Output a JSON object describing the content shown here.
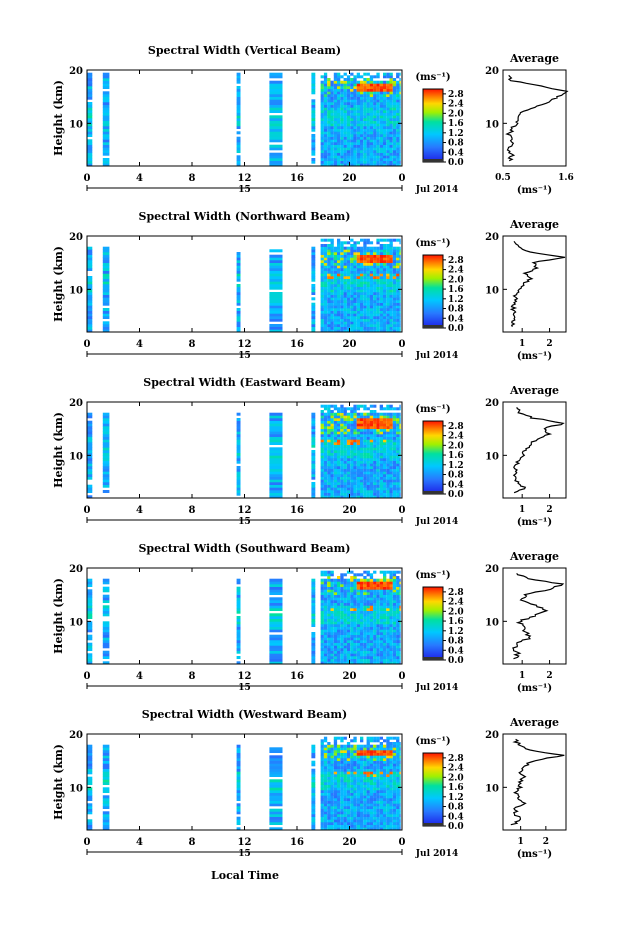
{
  "figure": {
    "xlabel": "Local Time",
    "ylabel": "Height (km)",
    "date_label": "Jul 2014",
    "day_label": "15",
    "colorbar_unit": "(ms⁻¹)",
    "colorbar_ticks": [
      "0.0",
      "0.4",
      "0.8",
      "1.2",
      "1.6",
      "2.0",
      "2.4",
      "2.8"
    ],
    "avg_title": "Average",
    "avg_xlabel": "(ms⁻¹)",
    "colors": {
      "low": "#1e1ee6",
      "mid": "#00c8ff",
      "high": "#ff2000",
      "bg": "#ffffff"
    }
  },
  "chart_data": [
    {
      "type": "heatmap",
      "title": "Spectral Width (Vertical Beam)",
      "xlabel": "Local Time",
      "ylabel": "Height (km)",
      "x_ticks": [
        "0",
        "4",
        "8",
        "12",
        "16",
        "20",
        "0"
      ],
      "y_ticks": [
        "20",
        "10"
      ],
      "xlim": [
        0,
        24
      ],
      "ylim": [
        2,
        20
      ],
      "colorbar": {
        "min": 0.0,
        "max": 3.0,
        "ticks": [
          "0.0",
          "0.4",
          "0.8",
          "1.2",
          "1.6",
          "2.0",
          "2.4",
          "2.8"
        ]
      },
      "data_periods_hours": [
        [
          0.0,
          0.4
        ],
        [
          1.2,
          1.7
        ],
        [
          11.4,
          11.7
        ],
        [
          13.9,
          14.9
        ],
        [
          17.1,
          17.4
        ],
        [
          17.8,
          23.9
        ]
      ],
      "strong_layer_km": [
        16,
        17
      ],
      "average_profile": {
        "xlim": [
          0.5,
          1.6
        ],
        "x_ticks": [
          "0.5",
          "1.6"
        ],
        "height_km": [
          3,
          4,
          5,
          6,
          7,
          8,
          9,
          10,
          11,
          12,
          13,
          14,
          15,
          16,
          17,
          18,
          19
        ],
        "values": [
          0.62,
          0.65,
          0.58,
          0.7,
          0.64,
          0.6,
          0.66,
          0.75,
          0.72,
          0.8,
          1.05,
          1.3,
          1.45,
          1.6,
          1.2,
          0.65,
          0.6
        ]
      }
    },
    {
      "type": "heatmap",
      "title": "Spectral Width (Northward Beam)",
      "xlabel": "Local Time",
      "ylabel": "Height (km)",
      "x_ticks": [
        "0",
        "4",
        "8",
        "12",
        "16",
        "20",
        "0"
      ],
      "y_ticks": [
        "20",
        "10"
      ],
      "xlim": [
        0,
        24
      ],
      "ylim": [
        2,
        20
      ],
      "colorbar": {
        "min": 0.0,
        "max": 3.0,
        "ticks": [
          "0.0",
          "0.4",
          "0.8",
          "1.2",
          "1.6",
          "2.0",
          "2.4",
          "2.8"
        ]
      },
      "data_periods_hours": [
        [
          0.0,
          0.4
        ],
        [
          1.2,
          1.7
        ],
        [
          11.4,
          11.7
        ],
        [
          13.9,
          14.9
        ],
        [
          17.1,
          17.4
        ],
        [
          17.8,
          23.9
        ]
      ],
      "strong_layer_km": [
        15,
        16
      ],
      "average_profile": {
        "xlim": [
          0.3,
          2.6
        ],
        "x_ticks": [
          "1",
          "2"
        ],
        "height_km": [
          3,
          4,
          5,
          6,
          7,
          8,
          9,
          10,
          11,
          12,
          13,
          14,
          15,
          16,
          17,
          18,
          19
        ],
        "values": [
          0.7,
          0.65,
          0.75,
          0.7,
          0.68,
          0.72,
          0.8,
          0.9,
          1.0,
          1.3,
          1.1,
          1.5,
          1.4,
          2.6,
          1.3,
          0.8,
          0.7
        ]
      }
    },
    {
      "type": "heatmap",
      "title": "Spectral Width (Eastward Beam)",
      "xlabel": "Local Time",
      "ylabel": "Height (km)",
      "x_ticks": [
        "0",
        "4",
        "8",
        "12",
        "16",
        "20",
        "0"
      ],
      "y_ticks": [
        "20",
        "10"
      ],
      "xlim": [
        0,
        24
      ],
      "ylim": [
        2,
        20
      ],
      "colorbar": {
        "min": 0.0,
        "max": 3.0,
        "ticks": [
          "0.0",
          "0.4",
          "0.8",
          "1.2",
          "1.6",
          "2.0",
          "2.4",
          "2.8"
        ]
      },
      "data_periods_hours": [
        [
          0.0,
          0.4
        ],
        [
          1.2,
          1.7
        ],
        [
          11.4,
          11.7
        ],
        [
          13.9,
          14.9
        ],
        [
          17.1,
          17.4
        ],
        [
          17.8,
          23.9
        ]
      ],
      "strong_layer_km": [
        15,
        16.5
      ],
      "average_profile": {
        "xlim": [
          0.3,
          2.6
        ],
        "x_ticks": [
          "1",
          "2"
        ],
        "height_km": [
          3,
          4,
          5,
          6,
          7,
          8,
          9,
          10,
          11,
          12,
          13,
          14,
          15,
          16,
          17,
          18,
          19
        ],
        "values": [
          0.7,
          1.1,
          0.8,
          0.7,
          0.72,
          0.8,
          0.9,
          1.0,
          1.1,
          1.3,
          1.5,
          2.0,
          1.8,
          2.5,
          1.4,
          0.9,
          0.8
        ]
      }
    },
    {
      "type": "heatmap",
      "title": "Spectral Width (Southward Beam)",
      "xlabel": "Local Time",
      "ylabel": "Height (km)",
      "x_ticks": [
        "0",
        "4",
        "8",
        "12",
        "16",
        "20",
        "0"
      ],
      "y_ticks": [
        "20",
        "10"
      ],
      "xlim": [
        0,
        24
      ],
      "ylim": [
        2,
        20
      ],
      "colorbar": {
        "min": 0.0,
        "max": 3.0,
        "ticks": [
          "0.0",
          "0.4",
          "0.8",
          "1.2",
          "1.6",
          "2.0",
          "2.4",
          "2.8"
        ]
      },
      "data_periods_hours": [
        [
          0.0,
          0.4
        ],
        [
          1.2,
          1.7
        ],
        [
          11.4,
          11.7
        ],
        [
          13.9,
          14.9
        ],
        [
          17.1,
          17.4
        ],
        [
          17.8,
          23.9
        ]
      ],
      "strong_layer_km": [
        16,
        17
      ],
      "average_profile": {
        "xlim": [
          0.3,
          2.6
        ],
        "x_ticks": [
          "1",
          "2"
        ],
        "height_km": [
          3,
          4,
          5,
          6,
          7,
          8,
          9,
          10,
          11,
          12,
          13,
          14,
          15,
          16,
          17,
          18,
          19
        ],
        "values": [
          0.75,
          0.85,
          0.7,
          0.9,
          1.3,
          1.1,
          1.0,
          0.9,
          1.4,
          1.9,
          1.5,
          1.0,
          1.1,
          2.0,
          2.5,
          1.2,
          0.8
        ]
      }
    },
    {
      "type": "heatmap",
      "title": "Spectral Width (Westward Beam)",
      "xlabel": "Local Time",
      "ylabel": "Height (km)",
      "x_ticks": [
        "0",
        "4",
        "8",
        "12",
        "16",
        "20",
        "0"
      ],
      "y_ticks": [
        "20",
        "10"
      ],
      "xlim": [
        0,
        24
      ],
      "ylim": [
        2,
        20
      ],
      "colorbar": {
        "min": 0.0,
        "max": 3.0,
        "ticks": [
          "0.0",
          "0.4",
          "0.8",
          "1.2",
          "1.6",
          "2.0",
          "2.4",
          "2.8"
        ]
      },
      "data_periods_hours": [
        [
          0.0,
          0.4
        ],
        [
          1.2,
          1.7
        ],
        [
          11.4,
          11.7
        ],
        [
          13.9,
          14.9
        ],
        [
          17.1,
          17.4
        ],
        [
          17.8,
          23.9
        ]
      ],
      "strong_layer_km": [
        16,
        16.8
      ],
      "average_profile": {
        "xlim": [
          0.3,
          2.8
        ],
        "x_ticks": [
          "1",
          "2"
        ],
        "height_km": [
          3,
          4,
          5,
          6,
          7,
          8,
          9,
          10,
          11,
          12,
          13,
          14,
          15,
          16,
          17,
          18,
          19
        ],
        "values": [
          0.7,
          1.0,
          0.75,
          0.8,
          1.1,
          0.9,
          0.85,
          0.95,
          1.0,
          1.1,
          1.0,
          1.2,
          1.5,
          2.7,
          1.3,
          0.9,
          0.8
        ]
      }
    }
  ]
}
